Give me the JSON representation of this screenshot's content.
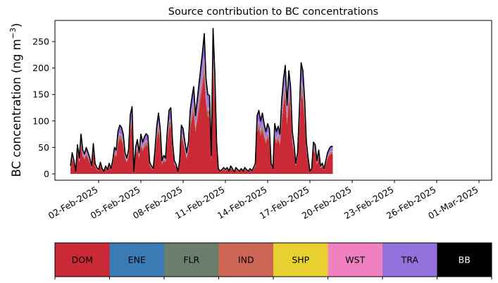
{
  "chart_data": {
    "type": "area",
    "stacked": true,
    "title": "Source contribution to BC concentrations",
    "xlabel": "",
    "ylabel_main": "BC concentration (ng m",
    "ylabel_sup": "−3",
    "ylabel_close": ")",
    "yticks": [
      0,
      50,
      100,
      150,
      200,
      250
    ],
    "ylim": [
      -12,
      290
    ],
    "x_start": "2025-01-31",
    "x_end": "2025-03-01",
    "xticks": [
      "02-Feb-2025",
      "05-Feb-2025",
      "08-Feb-2025",
      "11-Feb-2025",
      "14-Feb-2025",
      "17-Feb-2025",
      "20-Feb-2025",
      "23-Feb-2025",
      "26-Feb-2025",
      "01-Mar-2025"
    ],
    "grid": false,
    "legend": [
      {
        "label": "DOM",
        "color": "#c92a35",
        "text_color": "#000000"
      },
      {
        "label": "ENE",
        "color": "#3a7ab5",
        "text_color": "#000000"
      },
      {
        "label": "FLR",
        "color": "#6b7d6d",
        "text_color": "#000000"
      },
      {
        "label": "IND",
        "color": "#cc6655",
        "text_color": "#000000"
      },
      {
        "label": "SHP",
        "color": "#e8d030",
        "text_color": "#000000"
      },
      {
        "label": "WST",
        "color": "#f080c0",
        "text_color": "#000000"
      },
      {
        "label": "TRA",
        "color": "#9370db",
        "text_color": "#000000"
      },
      {
        "label": "BB",
        "color": "#000000",
        "text_color": "#ffffff"
      }
    ],
    "legend_position": "bottom",
    "total_line_color": "#000000",
    "series_order": [
      "DOM",
      "IND",
      "FLR",
      "WST",
      "TRA"
    ],
    "total_points": [
      [
        "2025-01-31T00:00",
        15
      ],
      [
        "2025-01-31T03:00",
        40
      ],
      [
        "2025-01-31T06:00",
        25
      ],
      [
        "2025-01-31T09:00",
        5
      ],
      [
        "2025-01-31T12:00",
        55
      ],
      [
        "2025-01-31T15:00",
        30
      ],
      [
        "2025-01-31T18:00",
        75
      ],
      [
        "2025-01-31T21:00",
        45
      ],
      [
        "2025-02-01T00:00",
        38
      ],
      [
        "2025-02-01T03:00",
        50
      ],
      [
        "2025-02-01T06:00",
        40
      ],
      [
        "2025-02-01T09:00",
        30
      ],
      [
        "2025-02-01T12:00",
        15
      ],
      [
        "2025-02-01T15:00",
        57
      ],
      [
        "2025-02-01T18:00",
        20
      ],
      [
        "2025-02-01T21:00",
        12
      ],
      [
        "2025-02-02T00:00",
        8
      ],
      [
        "2025-02-02T03:00",
        22
      ],
      [
        "2025-02-02T06:00",
        10
      ],
      [
        "2025-02-02T09:00",
        5
      ],
      [
        "2025-02-02T12:00",
        15
      ],
      [
        "2025-02-02T15:00",
        8
      ],
      [
        "2025-02-02T18:00",
        20
      ],
      [
        "2025-02-02T21:00",
        10
      ],
      [
        "2025-02-03T00:00",
        25
      ],
      [
        "2025-02-03T03:00",
        50
      ],
      [
        "2025-02-03T06:00",
        45
      ],
      [
        "2025-02-03T09:00",
        80
      ],
      [
        "2025-02-03T12:00",
        92
      ],
      [
        "2025-02-03T15:00",
        88
      ],
      [
        "2025-02-03T18:00",
        75
      ],
      [
        "2025-02-03T21:00",
        40
      ],
      [
        "2025-02-04T00:00",
        30
      ],
      [
        "2025-02-04T03:00",
        45
      ],
      [
        "2025-02-04T06:00",
        112
      ],
      [
        "2025-02-04T09:00",
        127
      ],
      [
        "2025-02-04T12:00",
        5
      ],
      [
        "2025-02-04T15:00",
        50
      ],
      [
        "2025-02-04T18:00",
        65
      ],
      [
        "2025-02-04T21:00",
        40
      ],
      [
        "2025-02-05T00:00",
        75
      ],
      [
        "2025-02-05T03:00",
        60
      ],
      [
        "2025-02-05T06:00",
        70
      ],
      [
        "2025-02-05T09:00",
        76
      ],
      [
        "2025-02-05T12:00",
        72
      ],
      [
        "2025-02-05T15:00",
        22
      ],
      [
        "2025-02-05T18:00",
        15
      ],
      [
        "2025-02-05T21:00",
        10
      ],
      [
        "2025-02-06T00:00",
        45
      ],
      [
        "2025-02-06T03:00",
        90
      ],
      [
        "2025-02-06T06:00",
        115
      ],
      [
        "2025-02-06T09:00",
        85
      ],
      [
        "2025-02-06T12:00",
        25
      ],
      [
        "2025-02-06T15:00",
        35
      ],
      [
        "2025-02-06T18:00",
        30
      ],
      [
        "2025-02-06T21:00",
        80
      ],
      [
        "2025-02-07T00:00",
        120
      ],
      [
        "2025-02-07T03:00",
        125
      ],
      [
        "2025-02-07T06:00",
        60
      ],
      [
        "2025-02-07T09:00",
        25
      ],
      [
        "2025-02-07T12:00",
        18
      ],
      [
        "2025-02-07T15:00",
        5
      ],
      [
        "2025-02-07T18:00",
        25
      ],
      [
        "2025-02-07T21:00",
        92
      ],
      [
        "2025-02-08T00:00",
        85
      ],
      [
        "2025-02-08T03:00",
        60
      ],
      [
        "2025-02-08T06:00",
        40
      ],
      [
        "2025-02-08T09:00",
        60
      ],
      [
        "2025-02-08T12:00",
        120
      ],
      [
        "2025-02-08T15:00",
        145
      ],
      [
        "2025-02-08T18:00",
        165
      ],
      [
        "2025-02-08T21:00",
        110
      ],
      [
        "2025-02-09T00:00",
        140
      ],
      [
        "2025-02-09T03:00",
        170
      ],
      [
        "2025-02-09T06:00",
        200
      ],
      [
        "2025-02-09T09:00",
        230
      ],
      [
        "2025-02-09T12:00",
        265
      ],
      [
        "2025-02-09T15:00",
        180
      ],
      [
        "2025-02-09T18:00",
        150
      ],
      [
        "2025-02-09T21:00",
        148
      ],
      [
        "2025-02-10T00:00",
        35
      ],
      [
        "2025-02-10T03:00",
        275
      ],
      [
        "2025-02-10T06:00",
        190
      ],
      [
        "2025-02-10T09:00",
        60
      ],
      [
        "2025-02-10T12:00",
        10
      ],
      [
        "2025-02-10T15:00",
        5
      ],
      [
        "2025-02-10T18:00",
        8
      ],
      [
        "2025-02-10T21:00",
        12
      ],
      [
        "2025-02-11T00:00",
        8
      ],
      [
        "2025-02-11T03:00",
        12
      ],
      [
        "2025-02-11T06:00",
        5
      ],
      [
        "2025-02-11T09:00",
        15
      ],
      [
        "2025-02-11T12:00",
        10
      ],
      [
        "2025-02-11T15:00",
        4
      ],
      [
        "2025-02-11T18:00",
        12
      ],
      [
        "2025-02-11T21:00",
        8
      ],
      [
        "2025-02-12T00:00",
        5
      ],
      [
        "2025-02-12T03:00",
        10
      ],
      [
        "2025-02-12T06:00",
        5
      ],
      [
        "2025-02-12T09:00",
        12
      ],
      [
        "2025-02-12T12:00",
        8
      ],
      [
        "2025-02-12T15:00",
        5
      ],
      [
        "2025-02-12T18:00",
        10
      ],
      [
        "2025-02-12T21:00",
        6
      ],
      [
        "2025-02-13T00:00",
        12
      ],
      [
        "2025-02-13T03:00",
        20
      ],
      [
        "2025-02-13T06:00",
        110
      ],
      [
        "2025-02-13T09:00",
        120
      ],
      [
        "2025-02-13T12:00",
        100
      ],
      [
        "2025-02-13T15:00",
        115
      ],
      [
        "2025-02-13T18:00",
        95
      ],
      [
        "2025-02-13T21:00",
        80
      ],
      [
        "2025-02-14T00:00",
        95
      ],
      [
        "2025-02-14T03:00",
        85
      ],
      [
        "2025-02-14T06:00",
        20
      ],
      [
        "2025-02-14T09:00",
        10
      ],
      [
        "2025-02-14T12:00",
        95
      ],
      [
        "2025-02-14T15:00",
        80
      ],
      [
        "2025-02-14T18:00",
        90
      ],
      [
        "2025-02-14T21:00",
        75
      ],
      [
        "2025-02-15T00:00",
        140
      ],
      [
        "2025-02-15T03:00",
        180
      ],
      [
        "2025-02-15T06:00",
        205
      ],
      [
        "2025-02-15T09:00",
        130
      ],
      [
        "2025-02-15T12:00",
        195
      ],
      [
        "2025-02-15T15:00",
        165
      ],
      [
        "2025-02-15T18:00",
        80
      ],
      [
        "2025-02-15T21:00",
        55
      ],
      [
        "2025-02-16T00:00",
        20
      ],
      [
        "2025-02-16T03:00",
        40
      ],
      [
        "2025-02-16T06:00",
        120
      ],
      [
        "2025-02-16T09:00",
        210
      ],
      [
        "2025-02-16T12:00",
        195
      ],
      [
        "2025-02-16T15:00",
        140
      ],
      [
        "2025-02-16T18:00",
        60
      ],
      [
        "2025-02-16T21:00",
        30
      ],
      [
        "2025-02-17T00:00",
        5
      ],
      [
        "2025-02-17T03:00",
        10
      ],
      [
        "2025-02-17T06:00",
        60
      ],
      [
        "2025-02-17T09:00",
        55
      ],
      [
        "2025-02-17T12:00",
        25
      ],
      [
        "2025-02-17T15:00",
        45
      ],
      [
        "2025-02-17T18:00",
        15
      ],
      [
        "2025-02-17T21:00",
        20
      ],
      [
        "2025-02-18T00:00",
        10
      ],
      [
        "2025-02-18T03:00",
        25
      ],
      [
        "2025-02-18T06:00",
        40
      ],
      [
        "2025-02-18T09:00",
        48
      ],
      [
        "2025-02-18T12:00",
        52
      ],
      [
        "2025-02-18T15:00",
        52
      ]
    ],
    "share_notes": "Stack shares of the total by source: DOM ~0.72, IND ~0.04, FLR ~0.04, WST ~0.04, TRA ~0.16"
  }
}
